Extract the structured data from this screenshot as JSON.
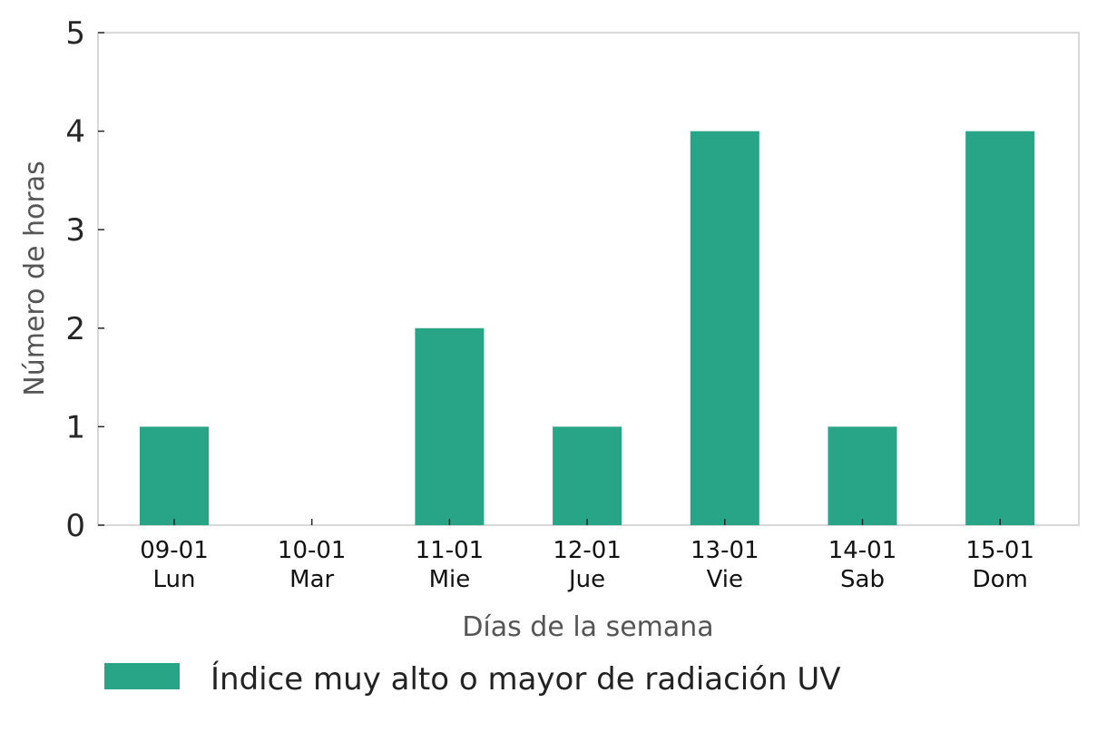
{
  "chart_data": {
    "type": "bar",
    "categories": [
      [
        "09-01",
        "Lun"
      ],
      [
        "10-01",
        "Mar"
      ],
      [
        "11-01",
        "Mie"
      ],
      [
        "12-01",
        "Jue"
      ],
      [
        "13-01",
        "Vie"
      ],
      [
        "14-01",
        "Sab"
      ],
      [
        "15-01",
        "Dom"
      ]
    ],
    "series": [
      {
        "name": "Índice muy alto o mayor de radiación UV",
        "values": [
          1,
          0,
          2,
          1,
          4,
          1,
          4
        ],
        "color": "#27a586"
      }
    ],
    "xlabel": "Días de la semana",
    "ylabel": "Número de horas",
    "ylim": [
      0,
      5
    ],
    "yticks": [
      0,
      1,
      2,
      3,
      4,
      5
    ],
    "grid": false,
    "legend": "bottom-left"
  }
}
